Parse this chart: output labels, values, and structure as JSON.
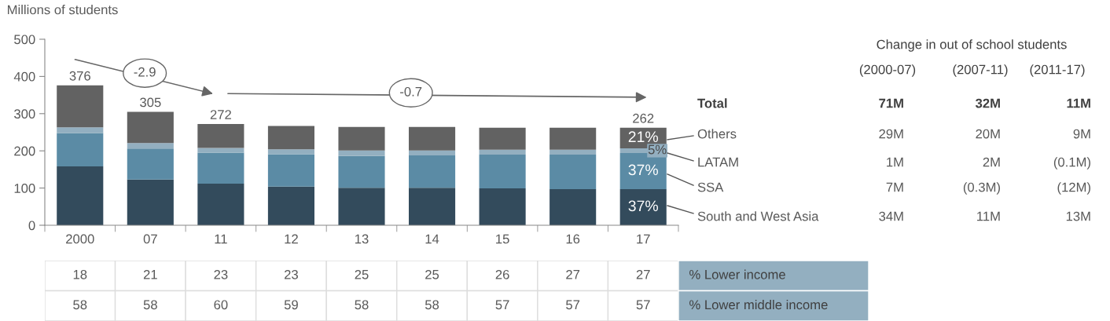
{
  "chart_data": [
    {
      "type": "bar",
      "stacked": true,
      "ylabel": "Millions of students",
      "categories": [
        "2000",
        "07",
        "11",
        "12",
        "13",
        "14",
        "15",
        "16",
        "17"
      ],
      "series": [
        {
          "color": "#334b5c",
          "values": [
            158,
            123,
            112,
            104,
            101,
            101,
            99,
            97,
            97
          ]
        },
        {
          "color": "#5b8ba5",
          "values": [
            90,
            83,
            83,
            87,
            85,
            87,
            91,
            93,
            97
          ]
        },
        {
          "color": "#93afc0",
          "values": [
            15,
            15,
            13,
            13,
            15,
            13,
            13,
            13,
            13
          ]
        },
        {
          "color": "#626262",
          "values": [
            113,
            84,
            64,
            63,
            63,
            63,
            59,
            59,
            55
          ]
        }
      ],
      "totals": [
        "376",
        "305",
        "272",
        null,
        null,
        null,
        null,
        null,
        "262"
      ],
      "ylim": [
        0,
        500
      ],
      "yticks": [
        0,
        100,
        200,
        300,
        400,
        500
      ],
      "grid": false,
      "legend": false,
      "annotations": [
        "-2.9",
        "-0.7",
        "37%",
        "37%",
        "5%",
        "21%"
      ]
    },
    {
      "type": "other",
      "title": "Change in out of school students",
      "annotations": [
        "(2000-07)",
        "(2007-11)",
        "(2011-17)",
        "Total",
        "71M",
        "32M",
        "11M",
        "Others",
        "29M",
        "20M",
        "9M",
        "LATAM",
        "1M",
        "2M",
        "(0.1M)",
        "SSA",
        "7M",
        "(0.3M)",
        "(12M)",
        "South and West Asia",
        "34M",
        "11M",
        "13M"
      ]
    },
    {
      "type": "other",
      "annotations": [
        "18",
        "21",
        "23",
        "23",
        "25",
        "25",
        "26",
        "27",
        "27",
        "% Lower income",
        "58",
        "58",
        "60",
        "59",
        "58",
        "58",
        "57",
        "57",
        "57",
        "% Lower middle income"
      ]
    }
  ]
}
